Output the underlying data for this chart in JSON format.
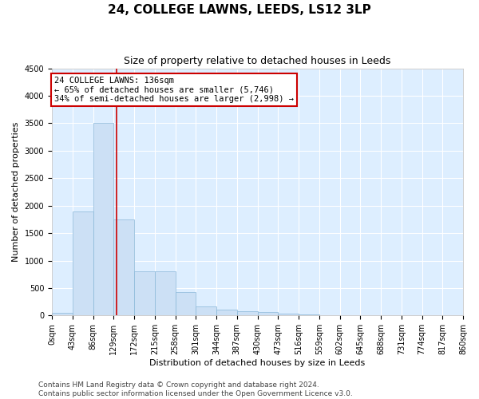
{
  "title": "24, COLLEGE LAWNS, LEEDS, LS12 3LP",
  "subtitle": "Size of property relative to detached houses in Leeds",
  "xlabel": "Distribution of detached houses by size in Leeds",
  "ylabel": "Number of detached properties",
  "bar_color": "#cce0f5",
  "bar_edge_color": "#8ab8d8",
  "background_color": "#ddeeff",
  "grid_color": "#ffffff",
  "property_line_x": 136,
  "property_line_color": "#cc0000",
  "bin_width": 43,
  "bar_values": [
    50,
    1900,
    3500,
    1750,
    800,
    800,
    430,
    165,
    100,
    75,
    60,
    30,
    15,
    5,
    3,
    2,
    1,
    1,
    1,
    0
  ],
  "tick_labels": [
    "0sqm",
    "43sqm",
    "86sqm",
    "129sqm",
    "172sqm",
    "215sqm",
    "258sqm",
    "301sqm",
    "344sqm",
    "387sqm",
    "430sqm",
    "473sqm",
    "516sqm",
    "559sqm",
    "602sqm",
    "645sqm",
    "688sqm",
    "731sqm",
    "774sqm",
    "817sqm",
    "860sqm"
  ],
  "ylim": [
    0,
    4500
  ],
  "yticks": [
    0,
    500,
    1000,
    1500,
    2000,
    2500,
    3000,
    3500,
    4000,
    4500
  ],
  "annotation_line1": "24 COLLEGE LAWNS: 136sqm",
  "annotation_line2": "← 65% of detached houses are smaller (5,746)",
  "annotation_line3": "34% of semi-detached houses are larger (2,998) →",
  "annotation_box_color": "#ffffff",
  "annotation_box_edge": "#cc0000",
  "footer_text": "Contains HM Land Registry data © Crown copyright and database right 2024.\nContains public sector information licensed under the Open Government Licence v3.0.",
  "title_fontsize": 11,
  "subtitle_fontsize": 9,
  "axis_label_fontsize": 8,
  "tick_fontsize": 7,
  "annotation_fontsize": 7.5,
  "footer_fontsize": 6.5
}
